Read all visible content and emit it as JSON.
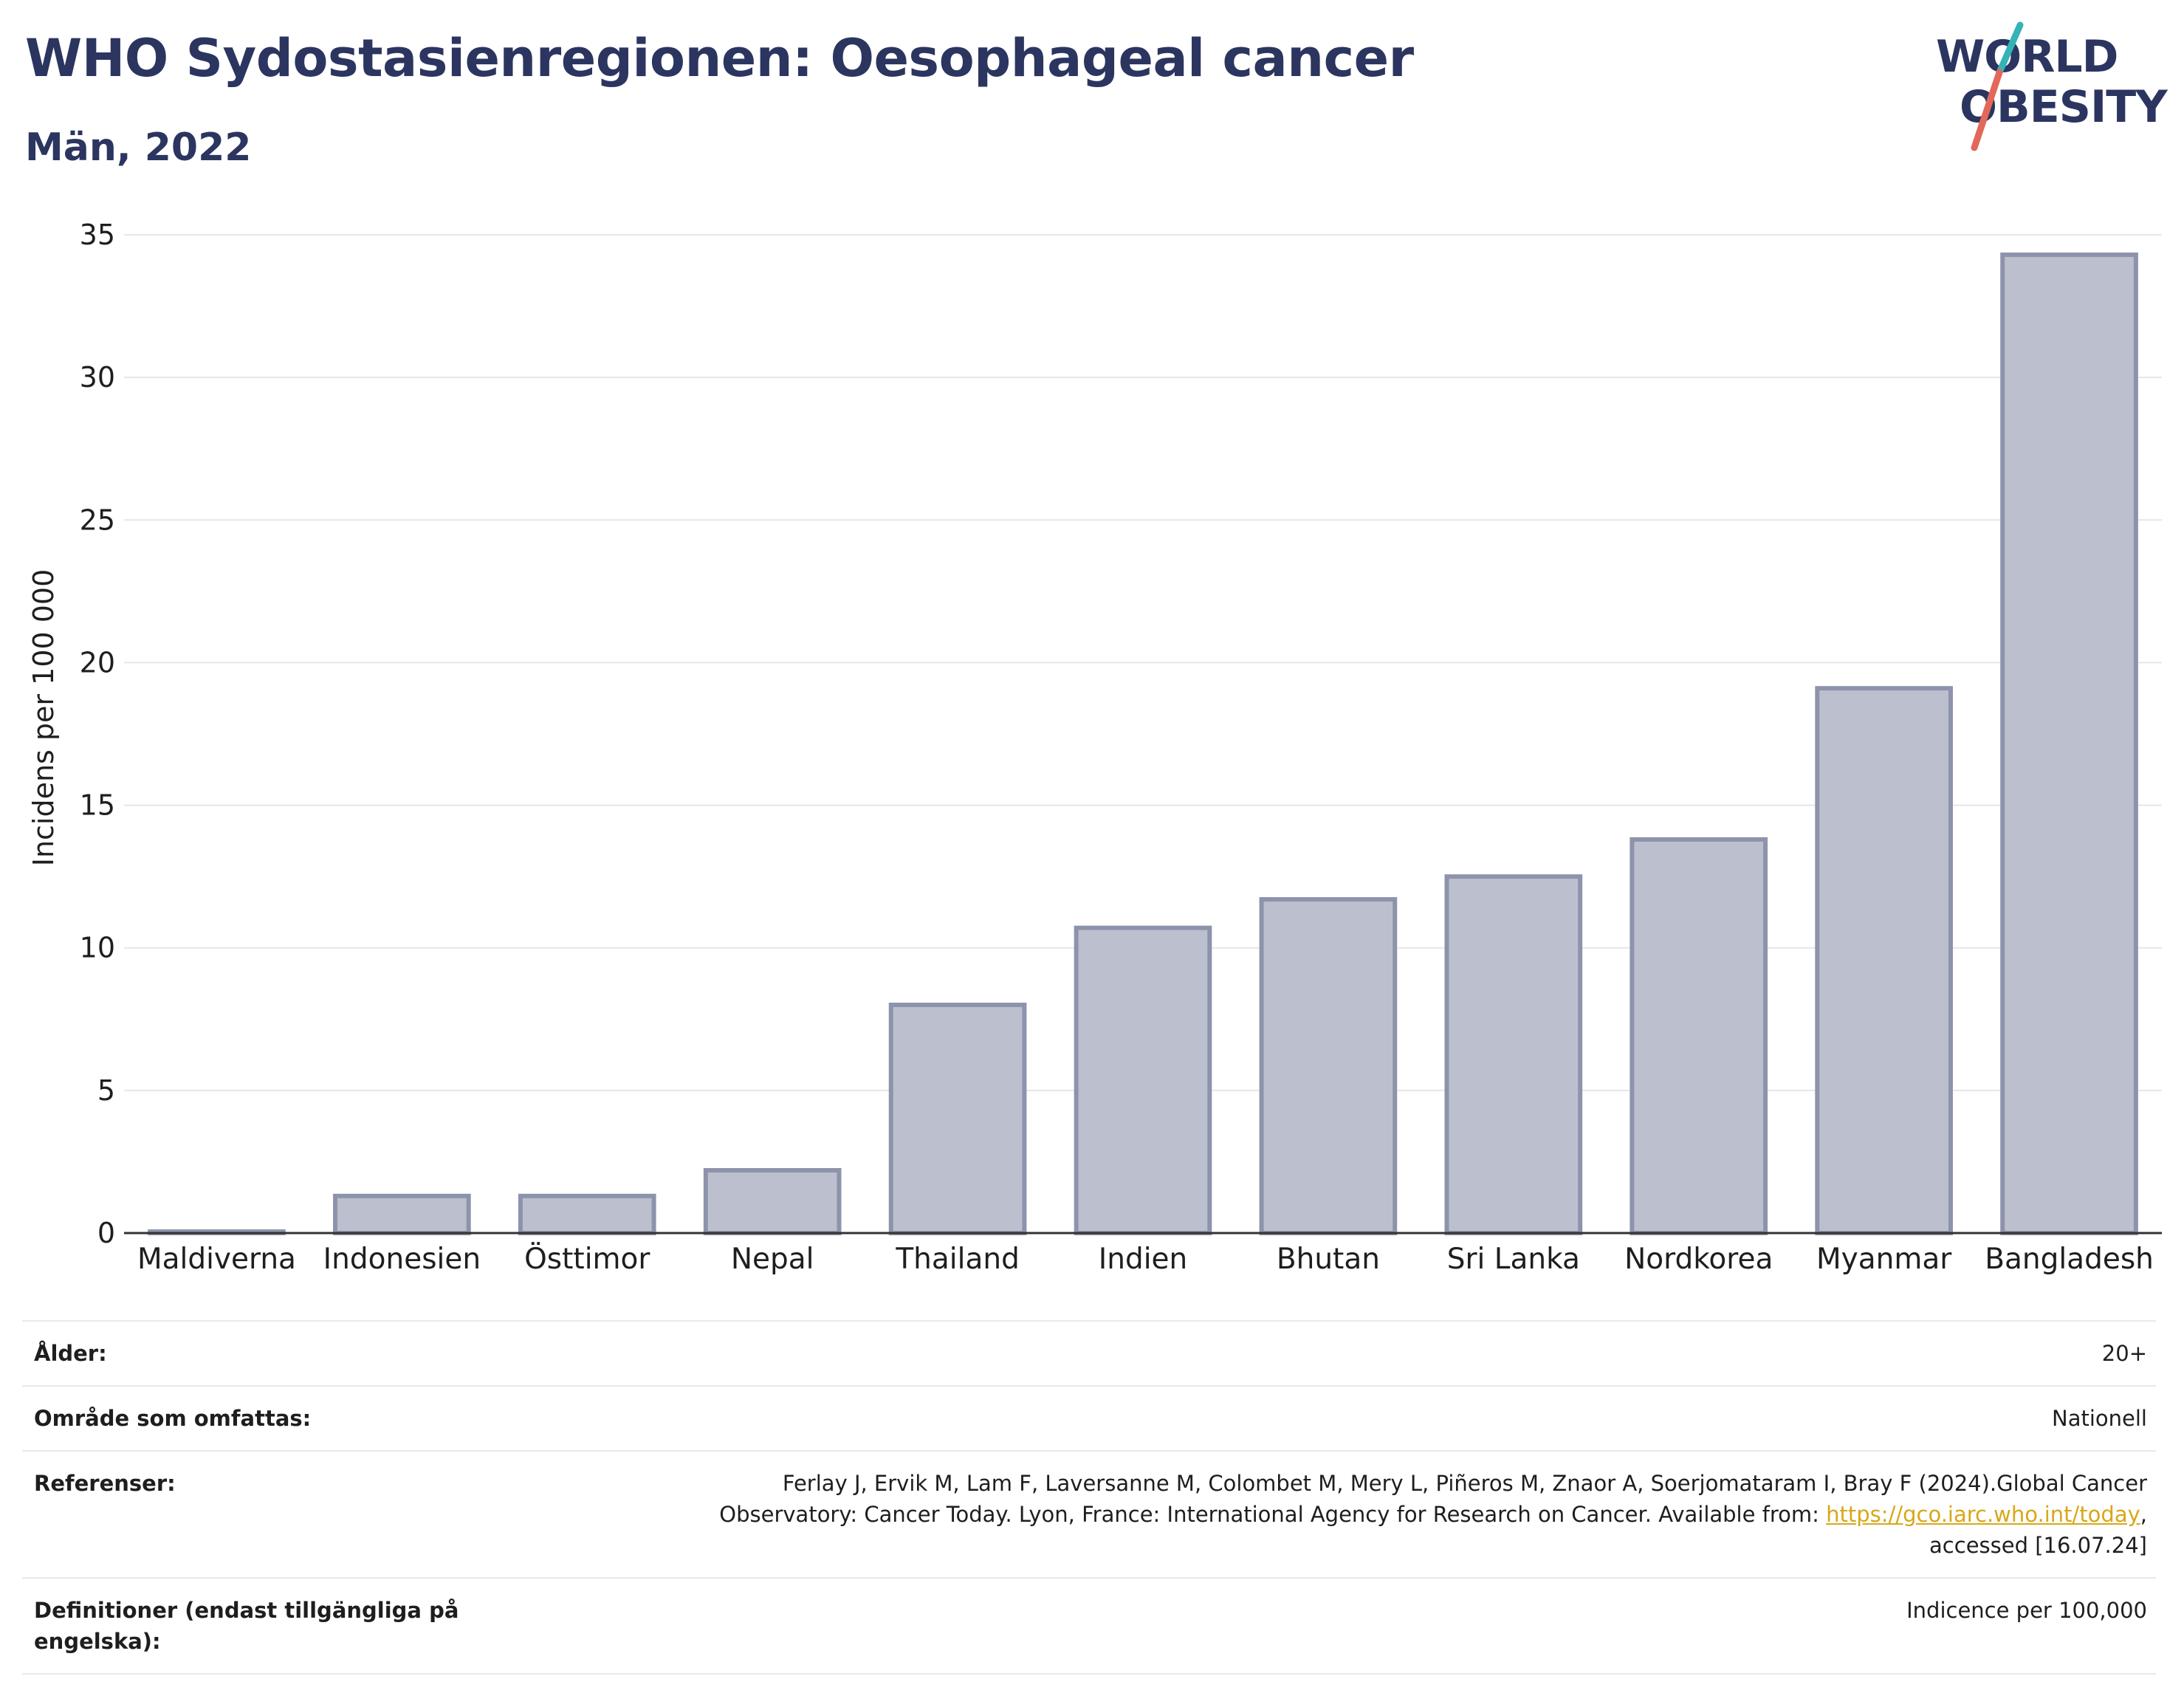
{
  "header": {
    "title": "WHO Sydostasienregionen: Oesophageal cancer",
    "subtitle": "Män, 2022"
  },
  "logo": {
    "line1": "WORLD",
    "line2": "OBESITY",
    "colors": {
      "text": "#2b3560",
      "slash_top": "#35b3b6",
      "slash_bottom": "#e2685a"
    }
  },
  "chart_data": {
    "type": "bar",
    "title": "WHO Sydostasienregionen: Oesophageal cancer",
    "subtitle": "Män, 2022",
    "xlabel": "",
    "ylabel": "Incidens per 100 000",
    "ylim": [
      0,
      35
    ],
    "yticks": [
      0,
      5,
      10,
      15,
      20,
      25,
      30,
      35
    ],
    "grid": true,
    "categories": [
      "Maldiverna",
      "Indonesien",
      "Östtimor",
      "Nepal",
      "Thailand",
      "Indien",
      "Bhutan",
      "Sri Lanka",
      "Nordkorea",
      "Myanmar",
      "Bangladesh"
    ],
    "values": [
      0.05,
      1.3,
      1.3,
      2.2,
      8.0,
      10.7,
      11.7,
      12.5,
      13.8,
      19.1,
      34.3
    ],
    "colors": {
      "bar_fill": "#bcc0ce",
      "bar_stroke": "#8d93ab",
      "grid": "#e6e6e6",
      "axis": "#333333"
    }
  },
  "info": {
    "rows": [
      {
        "label": "Ålder:",
        "value": "20+"
      },
      {
        "label": "Område som omfattas:",
        "value": "Nationell"
      },
      {
        "label": "Referenser:",
        "value_line1": "Ferlay J, Ervik M, Lam F, Laversanne M, Colombet M, Mery L, Piñeros M, Znaor A, Soerjomataram I, Bray F (2024).Global Cancer",
        "value_line2_prefix": "Observatory: Cancer Today. Lyon, France: International Agency for Research on Cancer. Available from: ",
        "link_text": "https://gco.iarc.who.int/today",
        "value_line2_suffix": ",",
        "value_line3": "accessed [16.07.24]"
      },
      {
        "label_line1": "Definitioner (endast tillgängliga på",
        "label_line2": "engelska):",
        "value": "Indicence per 100,000"
      }
    ]
  }
}
